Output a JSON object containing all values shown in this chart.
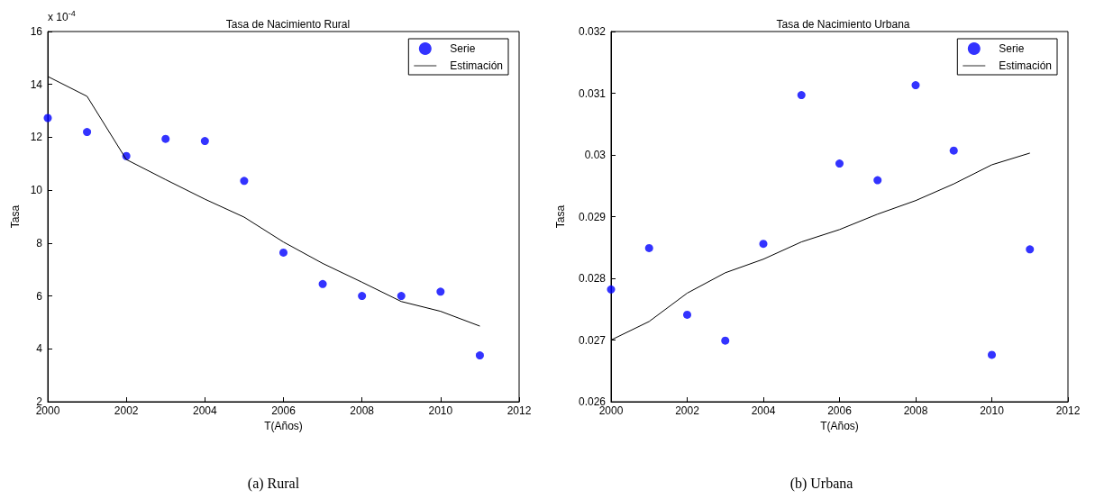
{
  "chart_data": [
    {
      "type": "scatter",
      "title": "Tasa de Nacimiento Rural",
      "xlabel": "T(Años)",
      "ylabel": "Tasa",
      "x": [
        2000,
        2001,
        2002,
        2003,
        2004,
        2005,
        2006,
        2007,
        2008,
        2009,
        2010,
        2011
      ],
      "series": [
        {
          "name": "Serie",
          "color": "#0000ff",
          "marker": "circle",
          "values": [
            12.73,
            12.2,
            11.29,
            11.94,
            11.86,
            10.35,
            7.64,
            6.45,
            6.0,
            6.0,
            6.16,
            3.75
          ]
        },
        {
          "name": "Estimación",
          "type": "line",
          "color": "#000000",
          "marker": "none",
          "values": [
            14.3,
            13.55,
            11.16,
            10.4,
            9.66,
            8.98,
            8.04,
            7.23,
            6.52,
            5.79,
            5.42,
            4.86
          ]
        }
      ],
      "xlim": [
        2000,
        2012
      ],
      "xticks": [
        2000,
        2002,
        2004,
        2006,
        2008,
        2010,
        2012
      ],
      "ylim": [
        2,
        16
      ],
      "yticks": [
        2,
        4,
        6,
        8,
        10,
        12,
        14,
        16
      ],
      "grid": false,
      "legend": "top right",
      "annotations": [
        "x 10$^{-4}$",
        "(a) Rural"
      ]
    },
    {
      "type": "scatter",
      "title": "Tasa de Nacimiento Urbana",
      "xlabel": "T(Años)",
      "ylabel": "Tasa",
      "x": [
        2000,
        2001,
        2002,
        2003,
        2004,
        2005,
        2006,
        2007,
        2008,
        2009,
        2010,
        2011
      ],
      "series": [
        {
          "name": "Serie",
          "color": "#0000ff",
          "marker": "circle",
          "values": [
            0.02782,
            0.02849,
            0.02741,
            0.02699,
            0.02856,
            0.03097,
            0.02986,
            0.02959,
            0.03113,
            0.03007,
            0.02676,
            0.02847
          ]
        },
        {
          "name": "Estimación",
          "type": "line",
          "color": "#000000",
          "marker": "none",
          "values": [
            0.027,
            0.0273,
            0.02776,
            0.02809,
            0.02831,
            0.02859,
            0.02879,
            0.02904,
            0.02926,
            0.02953,
            0.02984,
            0.03003
          ]
        }
      ],
      "xlim": [
        2000,
        2012
      ],
      "xticks": [
        2000,
        2002,
        2004,
        2006,
        2008,
        2010,
        2012
      ],
      "ylim": [
        0.026,
        0.032
      ],
      "yticks": [
        0.026,
        0.027,
        0.028,
        0.029,
        0.03,
        0.031,
        0.032
      ],
      "grid": false,
      "legend": "top right",
      "annotations": [
        "(b) Urbana"
      ]
    }
  ]
}
